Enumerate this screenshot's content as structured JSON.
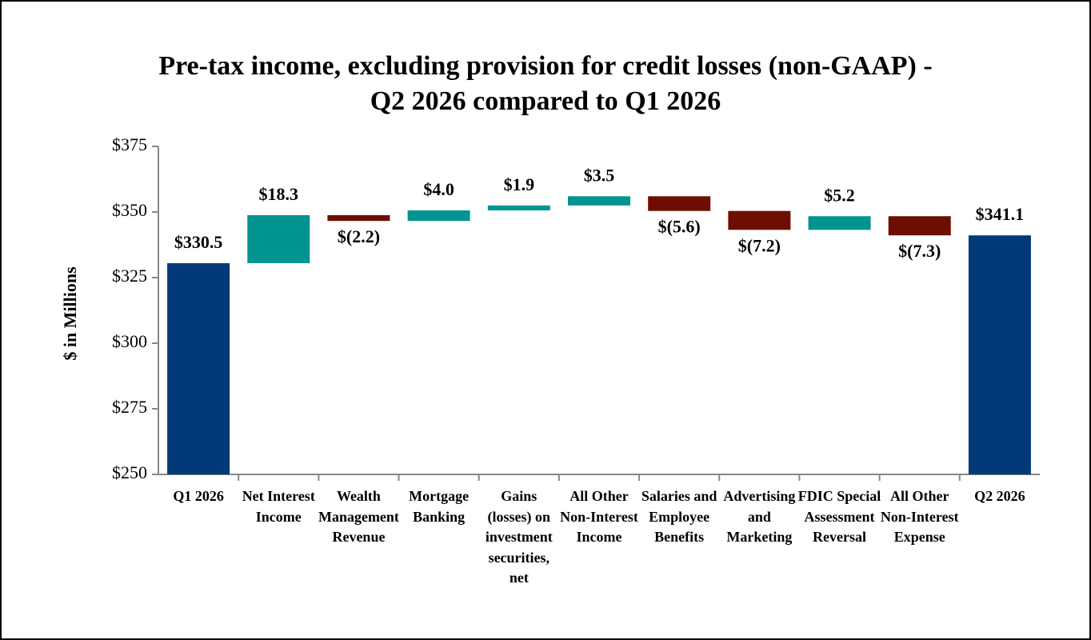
{
  "chart_data": {
    "type": "waterfall",
    "title": [
      "Pre-tax income, excluding provision for credit losses (non-GAAP) -",
      "Q2 2026 compared to Q1 2026"
    ],
    "y_label": "$ in Millions",
    "categories": [
      "Q1 2026",
      "Net Interest Income",
      "Wealth Management Revenue",
      "Mortgage Banking",
      "Gains (losses) on investment securities, net",
      "All Other Non-Interest Income",
      "Salaries and Employee Benefits",
      "Advertising and Marketing",
      "FDIC Special Assessment Reversal",
      "All Other Non-Interest Expense",
      "Q2 2026"
    ],
    "values": [
      330.5,
      18.3,
      -2.2,
      4.0,
      1.9,
      3.5,
      -5.6,
      -7.2,
      5.2,
      -7.3,
      341.1
    ],
    "value_labels": [
      "$330.5",
      "$18.3",
      "$(2.2)",
      "$4.0",
      "$1.9",
      "$3.5",
      "$(5.6)",
      "$(7.2)",
      "$5.2",
      "$(7.3)",
      "$341.1"
    ],
    "colors": {
      "total": "#003a78",
      "increase": "#009490",
      "decrease": "#6e0e00"
    },
    "ylim": [
      250,
      375
    ],
    "yticks": [
      {
        "value": 250,
        "label": "$250"
      },
      {
        "value": 275,
        "label": "$275"
      },
      {
        "value": 300,
        "label": "$300"
      },
      {
        "value": 325,
        "label": "$325"
      },
      {
        "value": 350,
        "label": "$350"
      },
      {
        "value": 375,
        "label": "$375"
      }
    ]
  }
}
